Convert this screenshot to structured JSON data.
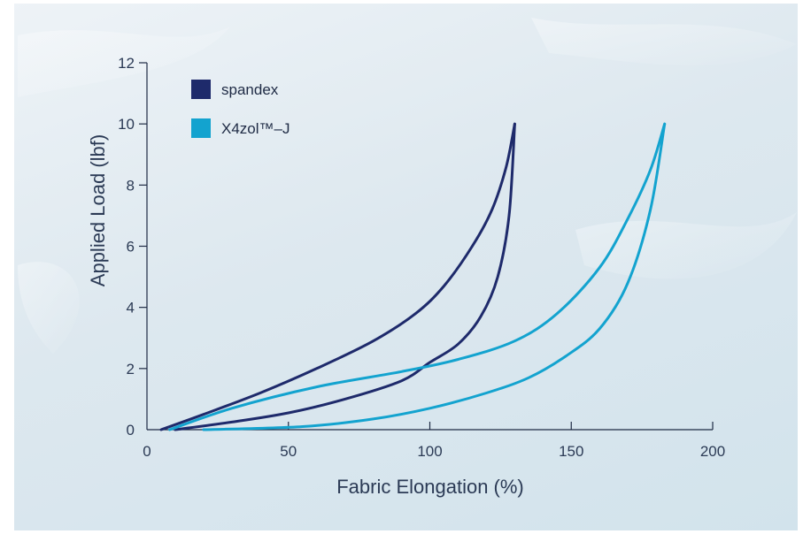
{
  "chart_data": {
    "type": "line",
    "xlabel": "Fabric Elongation (%)",
    "ylabel": "Applied Load (lbf)",
    "xlim": [
      0,
      200
    ],
    "ylim": [
      0,
      12
    ],
    "xticks": [
      0,
      50,
      100,
      150,
      200
    ],
    "yticks": [
      0,
      2,
      4,
      6,
      8,
      10,
      12
    ],
    "xtick_labels": [
      "0",
      "50",
      "100",
      "150",
      "200"
    ],
    "ytick_labels": [
      "0",
      "2",
      "4",
      "6",
      "8",
      "10",
      "12"
    ],
    "grid": false,
    "legend_position": "top-left",
    "series": [
      {
        "name": "spandex",
        "color": "#1e2a6b",
        "loading": [
          [
            5,
            0
          ],
          [
            20,
            0.5
          ],
          [
            40,
            1.2
          ],
          [
            60,
            2.0
          ],
          [
            80,
            2.9
          ],
          [
            95,
            3.8
          ],
          [
            105,
            4.7
          ],
          [
            115,
            6.0
          ],
          [
            122,
            7.2
          ],
          [
            127,
            8.6
          ],
          [
            130,
            10.0
          ]
        ],
        "unloading": [
          [
            130,
            10.0
          ],
          [
            128,
            7.0
          ],
          [
            124,
            5.0
          ],
          [
            118,
            3.7
          ],
          [
            110,
            2.8
          ],
          [
            100,
            2.2
          ],
          [
            90,
            1.6
          ],
          [
            70,
            1.0
          ],
          [
            50,
            0.55
          ],
          [
            30,
            0.25
          ],
          [
            10,
            0
          ]
        ]
      },
      {
        "name": "X4zol™–J",
        "color": "#13a3cf",
        "loading": [
          [
            8,
            0
          ],
          [
            30,
            0.7
          ],
          [
            60,
            1.4
          ],
          [
            90,
            1.9
          ],
          [
            110,
            2.3
          ],
          [
            130,
            2.9
          ],
          [
            145,
            3.8
          ],
          [
            160,
            5.3
          ],
          [
            170,
            6.9
          ],
          [
            178,
            8.5
          ],
          [
            183,
            10.0
          ]
        ],
        "unloading": [
          [
            183,
            10.0
          ],
          [
            178,
            7.2
          ],
          [
            170,
            4.8
          ],
          [
            160,
            3.3
          ],
          [
            148,
            2.4
          ],
          [
            135,
            1.7
          ],
          [
            120,
            1.2
          ],
          [
            100,
            0.7
          ],
          [
            80,
            0.35
          ],
          [
            55,
            0.1
          ],
          [
            20,
            0
          ]
        ]
      }
    ]
  }
}
